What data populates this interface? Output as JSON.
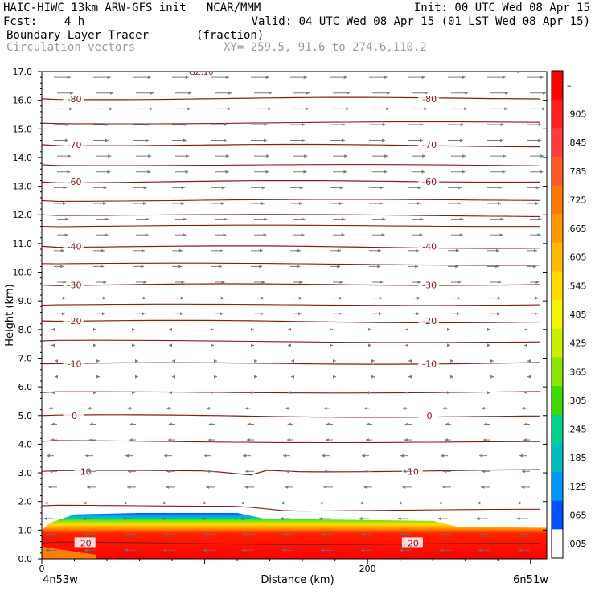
{
  "header": {
    "line1_left": "HAIC-HIWC 13km ARW-GFS init   NCAR/MMM",
    "line1_right": "Init: 00 UTC Wed 08 Apr 15",
    "line2_left": "Fcst:    4 h",
    "line2_right": "Valid: 04 UTC Wed 08 Apr 15 (01 LST Wed 08 Apr 15)",
    "line3_left": "Boundary Layer Tracer       (fraction)",
    "line4_left": "Circulation vectors",
    "line4_xy": "XY= 259.5, 91.6 to 274.6,110.2"
  },
  "chart_data": {
    "type": "heatmap",
    "ylabel": "Height (km)",
    "xlabel": "Distance (km)",
    "ylim": [
      0,
      17
    ],
    "xlim": [
      0,
      310
    ],
    "y_ticks": [
      "0.0",
      "1.0",
      "2.0",
      "3.0",
      "4.0",
      "5.0",
      "6.0",
      "7.0",
      "8.0",
      "9.0",
      "10.0",
      "11.0",
      "12.0",
      "13.0",
      "14.0",
      "15.0",
      "16.0",
      "17.0"
    ],
    "x_ticks": [
      {
        "value": 0,
        "label": "0"
      },
      {
        "value": 200,
        "label": "200"
      }
    ],
    "x_endpoints": {
      "left": "4n53w",
      "right": "6n51w"
    },
    "colorbar": {
      "labels": [
        "–",
        ".905",
        ".845",
        ".785",
        ".725",
        ".665",
        ".605",
        ".545",
        ".485",
        ".425",
        ".365",
        ".305",
        ".245",
        ".185",
        ".125",
        ".065",
        ".005"
      ],
      "colors": [
        "#ff0000",
        "#ff1f1f",
        "#ff3c3c",
        "#ff5a28",
        "#ff7a00",
        "#ff9b00",
        "#ffbb00",
        "#ffdb00",
        "#f5f500",
        "#c8f000",
        "#8ce600",
        "#3cdc00",
        "#00d28c",
        "#00bebe",
        "#0096ff",
        "#0050ff",
        "#ffffff"
      ]
    },
    "tracer_top": [
      {
        "x": 0,
        "y": 1.0
      },
      {
        "x": 5,
        "y": 1.25
      },
      {
        "x": 20,
        "y": 1.55
      },
      {
        "x": 60,
        "y": 1.6
      },
      {
        "x": 120,
        "y": 1.6
      },
      {
        "x": 138,
        "y": 1.38
      },
      {
        "x": 160,
        "y": 1.38
      },
      {
        "x": 240,
        "y": 1.32
      },
      {
        "x": 255,
        "y": 1.12
      },
      {
        "x": 310,
        "y": 1.08
      }
    ],
    "temperature_contours": [
      {
        "label": "-80",
        "y": 16.05,
        "label_x": [
          20,
          238
        ]
      },
      {
        "label": "-70",
        "y": 14.45,
        "label_x": [
          20,
          238
        ]
      },
      {
        "label": "-60",
        "y": 13.15,
        "label_x": [
          20,
          238
        ]
      },
      {
        "label": "-40",
        "y": 10.9,
        "label_x": [
          20,
          238
        ]
      },
      {
        "label": "-30",
        "y": 9.55,
        "label_x": [
          20,
          238
        ]
      },
      {
        "label": "-20",
        "y": 8.3,
        "label_x": [
          20,
          238
        ]
      },
      {
        "label": "-10",
        "y": 6.8,
        "label_x": [
          20,
          238
        ]
      },
      {
        "label": "0",
        "y": 5.0,
        "label_x": [
          20,
          238
        ]
      },
      {
        "label": "10",
        "y": 3.05,
        "label_x": [
          27,
          228
        ]
      },
      {
        "label": "20",
        "y": 0.55,
        "label_x": [
          27,
          228
        ]
      }
    ],
    "top_labels": [
      "GZ.10",
      "-"
    ],
    "wind_regimes": [
      {
        "y_min": 8.5,
        "y_max": 17.0,
        "direction": "east"
      },
      {
        "y_min": 5.5,
        "y_max": 8.5,
        "direction": "weak"
      },
      {
        "y_min": 0.0,
        "y_max": 5.5,
        "direction": "west"
      }
    ]
  }
}
